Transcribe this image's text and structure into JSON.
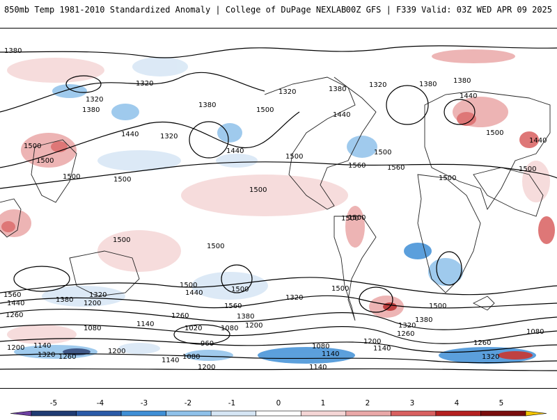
{
  "header": {
    "title_left": "850mb Temp 1981-2010 Standardized Anomaly | College of DuPage NEXLAB",
    "title_right": "00Z GFS | F339 Valid: 03Z WED APR 09 2025"
  },
  "map": {
    "variable": "850mb temperature standardized anomaly",
    "contour_variable": "850mb geopotential height (dam)",
    "contour_labels": [
      "1380",
      "1320",
      "1380",
      "1320",
      "1440",
      "1500",
      "1500",
      "1500",
      "1320",
      "1380",
      "1440",
      "1500",
      "1320",
      "1380",
      "1380",
      "1320",
      "1440",
      "1500",
      "1560",
      "1500",
      "1500",
      "1560",
      "1380",
      "1440",
      "1500",
      "1500",
      "1500",
      "1440",
      "1500",
      "1500",
      "1500",
      "1500",
      "1500",
      "1500",
      "1500",
      "1500",
      "1560",
      "1440",
      "1380",
      "1200",
      "1320",
      "1260",
      "1080",
      "1200",
      "1140",
      "1320",
      "1260",
      "1200",
      "1140",
      "1020",
      "1080",
      "960",
      "1200",
      "1380",
      "1260",
      "1560",
      "1440",
      "1320",
      "1500",
      "1320",
      "1380",
      "1260",
      "1200",
      "1140",
      "1080",
      "1140",
      "1140",
      "1200",
      "1080",
      "1140",
      "1260",
      "1320",
      "1080"
    ]
  },
  "colorbar": {
    "ticks": [
      "-5",
      "-4",
      "-3",
      "-2",
      "-1",
      "0",
      "1",
      "2",
      "3",
      "4",
      "5"
    ],
    "colors": [
      "#6b3fa0",
      "#1f3b73",
      "#2a5aa8",
      "#3f8fd6",
      "#8fc1ea",
      "#d6e6f5",
      "#ffffff",
      "#f5d6d6",
      "#eaa8a8",
      "#d96060",
      "#b52020",
      "#7a0d0d",
      "#f3c400"
    ]
  }
}
